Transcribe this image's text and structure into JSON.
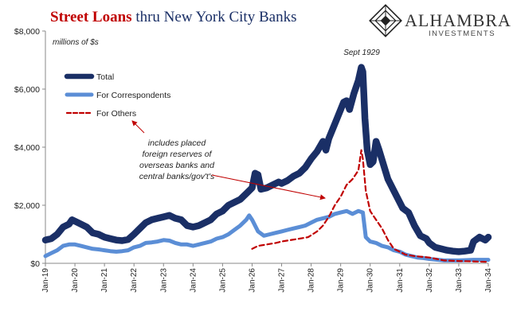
{
  "header": {
    "title_red": "Street Loans",
    "title_blue": " thru New York City Banks"
  },
  "logo": {
    "name": "ALHAMBRA",
    "sub": "INVESTMENTS"
  },
  "chart_data": {
    "type": "line",
    "unit_label": "millions of $s",
    "y_axis": {
      "min": 0,
      "max": 8000,
      "ticks": [
        0,
        2000,
        4000,
        6000,
        8000
      ],
      "tick_labels": [
        "$0",
        "$2,000",
        "$4,000",
        "$6,000",
        "$8,000"
      ]
    },
    "x_axis": {
      "min": 1919.0,
      "max": 1934.0,
      "ticks": [
        1919,
        1920,
        1921,
        1922,
        1923,
        1924,
        1925,
        1926,
        1927,
        1928,
        1929,
        1930,
        1931,
        1932,
        1933,
        1934
      ],
      "tick_labels": [
        "Jan-19",
        "Jan-20",
        "Jan-21",
        "Jan-22",
        "Jan-23",
        "Jan-24",
        "Jan-25",
        "Jan-26",
        "Jan-27",
        "Jan-28",
        "Jan-29",
        "Jan-30",
        "Jan-31",
        "Jan-32",
        "Jan-33",
        "Jan-34"
      ]
    },
    "grid": false,
    "legend_position": "top-left",
    "series": [
      {
        "name": "Total",
        "color": "#1a2f66",
        "style": "solid-thick",
        "points": [
          [
            1919.0,
            800
          ],
          [
            1919.2,
            850
          ],
          [
            1919.4,
            1000
          ],
          [
            1919.6,
            1250
          ],
          [
            1919.8,
            1350
          ],
          [
            1919.9,
            1500
          ],
          [
            1920.0,
            1450
          ],
          [
            1920.2,
            1350
          ],
          [
            1920.4,
            1250
          ],
          [
            1920.6,
            1050
          ],
          [
            1920.8,
            1000
          ],
          [
            1921.0,
            900
          ],
          [
            1921.2,
            850
          ],
          [
            1921.4,
            800
          ],
          [
            1921.6,
            780
          ],
          [
            1921.8,
            820
          ],
          [
            1922.0,
            1000
          ],
          [
            1922.2,
            1200
          ],
          [
            1922.4,
            1400
          ],
          [
            1922.6,
            1500
          ],
          [
            1922.8,
            1550
          ],
          [
            1923.0,
            1600
          ],
          [
            1923.2,
            1650
          ],
          [
            1923.4,
            1550
          ],
          [
            1923.6,
            1500
          ],
          [
            1923.8,
            1300
          ],
          [
            1924.0,
            1250
          ],
          [
            1924.2,
            1300
          ],
          [
            1924.4,
            1400
          ],
          [
            1924.6,
            1500
          ],
          [
            1924.8,
            1700
          ],
          [
            1925.0,
            1800
          ],
          [
            1925.2,
            2000
          ],
          [
            1925.4,
            2100
          ],
          [
            1925.6,
            2200
          ],
          [
            1925.8,
            2400
          ],
          [
            1926.0,
            2600
          ],
          [
            1926.1,
            3100
          ],
          [
            1926.2,
            3050
          ],
          [
            1926.3,
            2550
          ],
          [
            1926.5,
            2600
          ],
          [
            1926.7,
            2700
          ],
          [
            1926.9,
            2800
          ],
          [
            1927.0,
            2750
          ],
          [
            1927.2,
            2850
          ],
          [
            1927.4,
            3000
          ],
          [
            1927.6,
            3100
          ],
          [
            1927.8,
            3300
          ],
          [
            1928.0,
            3600
          ],
          [
            1928.2,
            3850
          ],
          [
            1928.4,
            4200
          ],
          [
            1928.5,
            3900
          ],
          [
            1928.6,
            4300
          ],
          [
            1928.8,
            4800
          ],
          [
            1929.0,
            5300
          ],
          [
            1929.1,
            5550
          ],
          [
            1929.2,
            5600
          ],
          [
            1929.3,
            5300
          ],
          [
            1929.45,
            5850
          ],
          [
            1929.6,
            6300
          ],
          [
            1929.7,
            6750
          ],
          [
            1929.75,
            6600
          ],
          [
            1929.82,
            5000
          ],
          [
            1929.9,
            3900
          ],
          [
            1930.0,
            3400
          ],
          [
            1930.1,
            3500
          ],
          [
            1930.2,
            4200
          ],
          [
            1930.3,
            3900
          ],
          [
            1930.45,
            3400
          ],
          [
            1930.6,
            2900
          ],
          [
            1930.8,
            2500
          ],
          [
            1930.9,
            2300
          ],
          [
            1931.0,
            2100
          ],
          [
            1931.1,
            1900
          ],
          [
            1931.3,
            1750
          ],
          [
            1931.5,
            1300
          ],
          [
            1931.7,
            950
          ],
          [
            1931.9,
            850
          ],
          [
            1932.0,
            700
          ],
          [
            1932.2,
            550
          ],
          [
            1932.4,
            500
          ],
          [
            1932.6,
            450
          ],
          [
            1932.8,
            420
          ],
          [
            1933.0,
            400
          ],
          [
            1933.2,
            420
          ],
          [
            1933.4,
            450
          ],
          [
            1933.5,
            750
          ],
          [
            1933.7,
            900
          ],
          [
            1933.9,
            800
          ],
          [
            1934.0,
            900
          ]
        ]
      },
      {
        "name": "For Correspondents",
        "color": "#5b8ed6",
        "style": "solid-medium",
        "points": [
          [
            1919.0,
            250
          ],
          [
            1919.2,
            350
          ],
          [
            1919.4,
            450
          ],
          [
            1919.6,
            600
          ],
          [
            1919.8,
            650
          ],
          [
            1920.0,
            650
          ],
          [
            1920.2,
            600
          ],
          [
            1920.4,
            550
          ],
          [
            1920.6,
            500
          ],
          [
            1920.8,
            480
          ],
          [
            1921.0,
            450
          ],
          [
            1921.2,
            420
          ],
          [
            1921.4,
            400
          ],
          [
            1921.6,
            420
          ],
          [
            1921.8,
            450
          ],
          [
            1922.0,
            550
          ],
          [
            1922.2,
            600
          ],
          [
            1922.4,
            700
          ],
          [
            1922.6,
            720
          ],
          [
            1922.8,
            750
          ],
          [
            1923.0,
            800
          ],
          [
            1923.2,
            780
          ],
          [
            1923.4,
            700
          ],
          [
            1923.6,
            650
          ],
          [
            1923.8,
            650
          ],
          [
            1924.0,
            600
          ],
          [
            1924.2,
            650
          ],
          [
            1924.4,
            700
          ],
          [
            1924.6,
            750
          ],
          [
            1924.8,
            850
          ],
          [
            1925.0,
            900
          ],
          [
            1925.2,
            1000
          ],
          [
            1925.4,
            1150
          ],
          [
            1925.6,
            1300
          ],
          [
            1925.8,
            1500
          ],
          [
            1925.9,
            1650
          ],
          [
            1926.0,
            1500
          ],
          [
            1926.2,
            1100
          ],
          [
            1926.4,
            950
          ],
          [
            1926.6,
            1000
          ],
          [
            1926.8,
            1050
          ],
          [
            1927.0,
            1100
          ],
          [
            1927.2,
            1150
          ],
          [
            1927.4,
            1200
          ],
          [
            1927.6,
            1250
          ],
          [
            1927.8,
            1300
          ],
          [
            1928.0,
            1400
          ],
          [
            1928.2,
            1500
          ],
          [
            1928.4,
            1550
          ],
          [
            1928.6,
            1600
          ],
          [
            1928.8,
            1700
          ],
          [
            1929.0,
            1750
          ],
          [
            1929.2,
            1800
          ],
          [
            1929.4,
            1700
          ],
          [
            1929.6,
            1800
          ],
          [
            1929.75,
            1750
          ],
          [
            1929.85,
            900
          ],
          [
            1930.0,
            750
          ],
          [
            1930.2,
            700
          ],
          [
            1930.4,
            600
          ],
          [
            1930.6,
            550
          ],
          [
            1930.8,
            450
          ],
          [
            1931.0,
            400
          ],
          [
            1931.2,
            300
          ],
          [
            1931.4,
            250
          ],
          [
            1931.6,
            200
          ],
          [
            1931.8,
            180
          ],
          [
            1932.0,
            150
          ],
          [
            1932.5,
            100
          ],
          [
            1933.0,
            100
          ],
          [
            1933.5,
            120
          ],
          [
            1934.0,
            120
          ]
        ]
      },
      {
        "name": "For Others",
        "color": "#c00000",
        "style": "dashed",
        "points": [
          [
            1926.0,
            500
          ],
          [
            1926.2,
            600
          ],
          [
            1926.5,
            650
          ],
          [
            1926.8,
            700
          ],
          [
            1927.0,
            750
          ],
          [
            1927.3,
            800
          ],
          [
            1927.6,
            850
          ],
          [
            1927.9,
            900
          ],
          [
            1928.2,
            1100
          ],
          [
            1928.4,
            1300
          ],
          [
            1928.6,
            1600
          ],
          [
            1928.8,
            2000
          ],
          [
            1929.0,
            2300
          ],
          [
            1929.2,
            2700
          ],
          [
            1929.4,
            2900
          ],
          [
            1929.6,
            3200
          ],
          [
            1929.7,
            3900
          ],
          [
            1929.75,
            3600
          ],
          [
            1929.85,
            2500
          ],
          [
            1930.0,
            1800
          ],
          [
            1930.2,
            1500
          ],
          [
            1930.4,
            1200
          ],
          [
            1930.6,
            800
          ],
          [
            1930.8,
            500
          ],
          [
            1931.0,
            400
          ],
          [
            1931.2,
            300
          ],
          [
            1931.5,
            250
          ],
          [
            1932.0,
            200
          ],
          [
            1932.5,
            100
          ],
          [
            1933.0,
            80
          ],
          [
            1934.0,
            50
          ]
        ]
      }
    ],
    "annotations": {
      "peak_label": "Sept 1929",
      "note_lines": [
        "includes placed",
        "foreign reserves of",
        "overseas banks and",
        "central banks/gov't's"
      ],
      "note_color": "#c00000"
    }
  }
}
